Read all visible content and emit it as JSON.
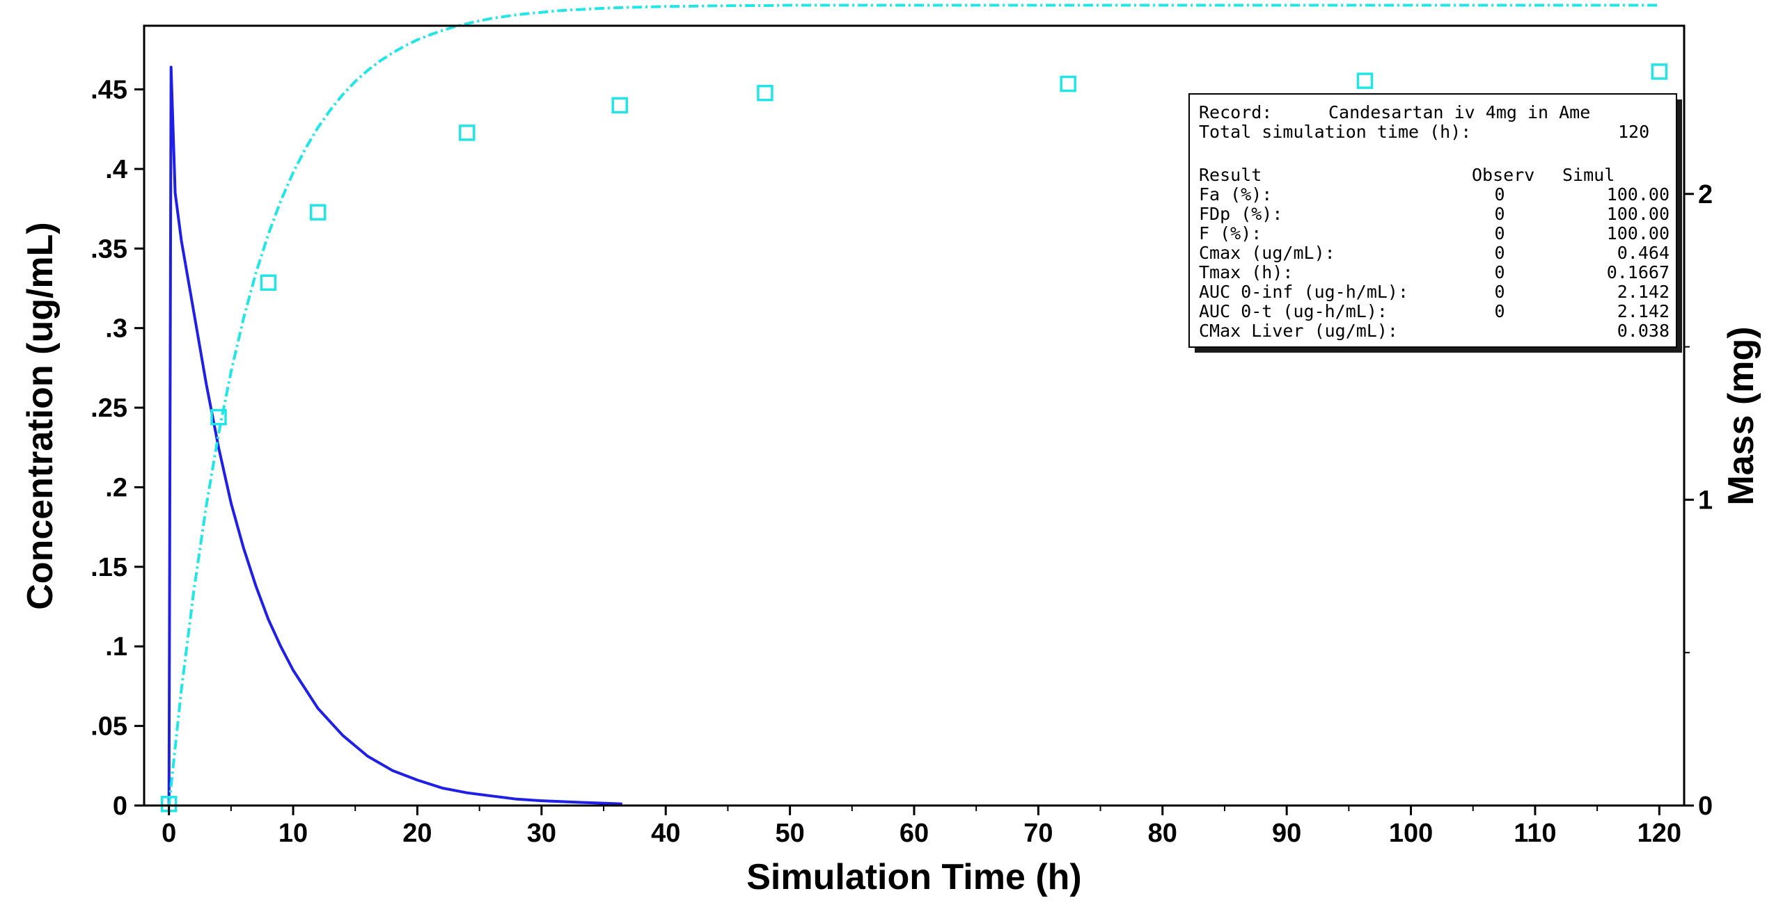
{
  "chart_data": {
    "type": "line",
    "xlabel": "Simulation Time (h)",
    "ylabel": "Concentration (ug/mL)",
    "y2label": "Mass (mg)",
    "xlim": [
      -2,
      122
    ],
    "ylim": [
      0,
      0.49
    ],
    "y2lim": [
      0,
      2.55
    ],
    "x_ticks": [
      0,
      10,
      20,
      30,
      40,
      50,
      60,
      70,
      80,
      90,
      100,
      110,
      120
    ],
    "y_ticks": [
      0,
      0.05,
      0.1,
      0.15,
      0.2,
      0.25,
      0.3,
      0.35,
      0.4,
      0.45
    ],
    "y2_ticks": [
      0,
      1,
      2
    ],
    "grid": false,
    "series": [
      {
        "axis": "left",
        "style": "solid",
        "color": "#1f1fe6",
        "x": [
          0,
          0.1667,
          0.5,
          1,
          2,
          3,
          4,
          5,
          6,
          7,
          8,
          9,
          10,
          12,
          14,
          16,
          18,
          20,
          22,
          24,
          26,
          28,
          30,
          33,
          36.5
        ],
        "y": [
          0,
          0.464,
          0.385,
          0.355,
          0.31,
          0.265,
          0.225,
          0.19,
          0.162,
          0.138,
          0.117,
          0.1,
          0.085,
          0.061,
          0.044,
          0.031,
          0.022,
          0.016,
          0.011,
          0.008,
          0.006,
          0.004,
          0.003,
          0.002,
          0.001
        ]
      },
      {
        "axis": "right",
        "style": "dash-dot",
        "color": "#22e6e6",
        "x": [
          0,
          1,
          2,
          3,
          4,
          5,
          6,
          7,
          8,
          9,
          10,
          11,
          12,
          13,
          14,
          15,
          16,
          17,
          18,
          19,
          20,
          21,
          22,
          23,
          24,
          25,
          26,
          27,
          28,
          29,
          30,
          31,
          32,
          33,
          34,
          35,
          36,
          37,
          38,
          39,
          40,
          42,
          44,
          46,
          48,
          50,
          55,
          60,
          70,
          80,
          90,
          100,
          110,
          120
        ],
        "y": [
          0,
          0.378,
          0.702,
          0.979,
          1.216,
          1.419,
          1.592,
          1.741,
          1.868,
          1.977,
          2.07,
          2.149,
          2.217,
          2.275,
          2.325,
          2.368,
          2.404,
          2.435,
          2.461,
          2.484,
          2.504,
          2.52,
          2.534,
          2.547,
          2.557,
          2.566,
          2.574,
          2.58,
          2.586,
          2.59,
          2.594,
          2.598,
          2.601,
          2.603,
          2.605,
          2.607,
          2.609,
          2.61,
          2.611,
          2.612,
          2.613,
          2.614,
          2.615,
          2.616,
          2.616,
          2.617,
          2.617,
          2.617,
          2.617,
          2.617,
          2.617,
          2.617,
          2.617,
          2.617
        ]
      },
      {
        "axis": "right",
        "style": "markers",
        "marker": "open-square",
        "color": "#22e6e6",
        "x": [
          0,
          4,
          8,
          12,
          24,
          36.3,
          48,
          72.4,
          96.3,
          120
        ],
        "y": [
          0.005,
          1.27,
          1.71,
          1.94,
          2.2,
          2.29,
          2.33,
          2.36,
          2.37,
          2.4
        ]
      }
    ],
    "info_box": {
      "record_label": "Record:",
      "record_value": "Candesartan iv 4mg in Ame",
      "total_label": "Total simulation time (h):",
      "total_value": "120",
      "headers": [
        "Result",
        "Observ",
        "Simul"
      ],
      "rows": [
        {
          "result": "Fa (%):",
          "observ": "0",
          "simul": "100.00"
        },
        {
          "result": "FDp (%):",
          "observ": "0",
          "simul": "100.00"
        },
        {
          "result": "F (%):",
          "observ": "0",
          "simul": "100.00"
        },
        {
          "result": "Cmax (ug/mL):",
          "observ": "0",
          "simul": "0.464"
        },
        {
          "result": "Tmax (h):",
          "observ": "0",
          "simul": "0.1667"
        },
        {
          "result": "AUC 0-inf (ug-h/mL):",
          "observ": "0",
          "simul": "2.142"
        },
        {
          "result": "AUC 0-t (ug-h/mL):",
          "observ": "0",
          "simul": "2.142"
        },
        {
          "result": "CMax Liver (ug/mL):",
          "observ": "",
          "simul": "0.038"
        }
      ]
    }
  }
}
